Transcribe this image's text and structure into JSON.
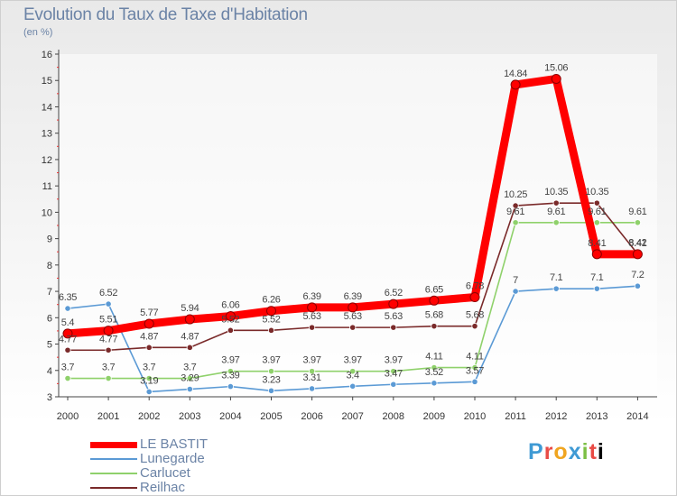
{
  "title": "Evolution du Taux de Taxe d'Habitation",
  "subtitle": "(en %)",
  "brand": "Proxiti",
  "chart_data": {
    "type": "line",
    "title": "Evolution du Taux de Taxe d'Habitation",
    "ylabel": "(en %)",
    "xlabel": "",
    "x": [
      2000,
      2001,
      2002,
      2003,
      2004,
      2005,
      2006,
      2007,
      2008,
      2009,
      2010,
      2011,
      2012,
      2013,
      2014
    ],
    "ylim": [
      3,
      16
    ],
    "yticks": [
      3,
      4,
      5,
      6,
      7,
      8,
      9,
      10,
      11,
      12,
      13,
      14,
      15,
      16
    ],
    "grid": false,
    "legend": "bottom-left",
    "series": [
      {
        "name": "LE BASTIT",
        "color": "#ff0000",
        "values": [
          5.4,
          5.51,
          5.77,
          5.94,
          6.06,
          6.26,
          6.39,
          6.39,
          6.52,
          6.65,
          6.78,
          14.84,
          15.06,
          8.41,
          8.41
        ],
        "labels": [
          "5.4",
          "5.51",
          "5.77",
          "5.94",
          "6.06",
          "6.26",
          "6.39",
          "6.39",
          "6.52",
          "6.65",
          "6.78",
          "14.84",
          "15.06",
          "8.41",
          "8.41"
        ]
      },
      {
        "name": "Lunegarde",
        "color": "#5b9ad5",
        "values": [
          6.35,
          6.52,
          3.19,
          3.29,
          3.39,
          3.23,
          3.31,
          3.4,
          3.47,
          3.52,
          3.57,
          7.0,
          7.1,
          7.1,
          7.2
        ],
        "labels": [
          "6.35",
          "6.52",
          "3.19",
          "3.29",
          "3.39",
          "3.23",
          "3.31",
          "3.4",
          "3.47",
          "3.52",
          "3.57",
          "7",
          "7.1",
          "7.1",
          "7.2"
        ]
      },
      {
        "name": "Carlucet",
        "color": "#8fd16b",
        "values": [
          3.7,
          3.7,
          3.7,
          3.7,
          3.97,
          3.97,
          3.97,
          3.97,
          3.97,
          4.11,
          4.11,
          9.61,
          9.61,
          9.61,
          9.61
        ],
        "labels": [
          "3.7",
          "3.7",
          "3.7",
          "3.7",
          "3.97",
          "3.97",
          "3.97",
          "3.97",
          "3.97",
          "4.11",
          "4.11",
          "9.61",
          "9.61",
          "9.61",
          "9.61"
        ]
      },
      {
        "name": "Reilhac",
        "color": "#7a2a2a",
        "values": [
          4.77,
          4.77,
          4.87,
          4.87,
          5.52,
          5.52,
          5.63,
          5.63,
          5.63,
          5.68,
          5.68,
          10.25,
          10.35,
          10.35,
          8.42
        ],
        "labels": [
          "4.77",
          "4.77",
          "4.87",
          "4.87",
          "5.52",
          "5.52",
          "5.63",
          "5.63",
          "5.63",
          "5.68",
          "5.68",
          "10.25",
          "10.35",
          "10.35",
          "8.42"
        ]
      }
    ]
  }
}
